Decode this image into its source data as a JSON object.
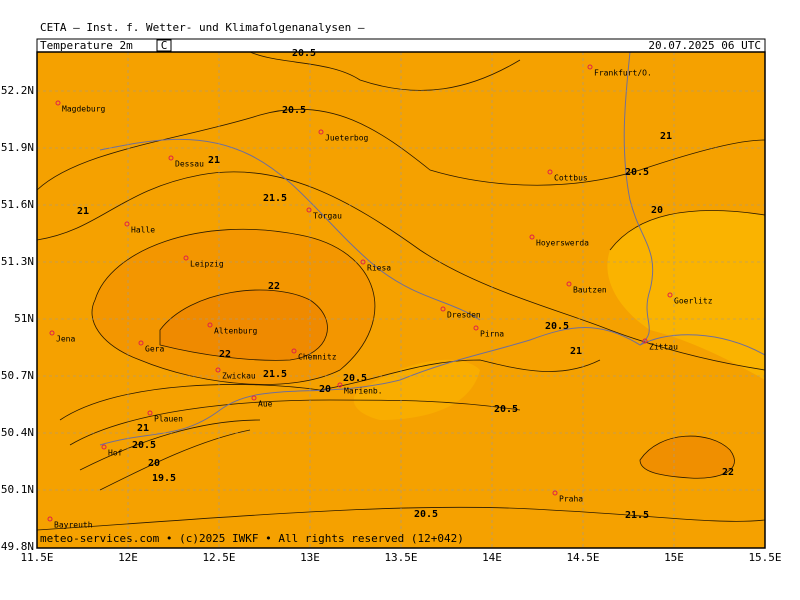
{
  "header": {
    "title": "CETA — Inst. f. Wetter- und Klimafolgenanalysen —"
  },
  "panel": {
    "field": "Temperature 2m",
    "unit": "C",
    "valid": "20.07.2025 06 UTC"
  },
  "footer": "meteo-services.com • (c)2025 IWKF • All rights reserved (12+042)",
  "xticks": [
    "11.5E",
    "12E",
    "12.5E",
    "13E",
    "13.5E",
    "14E",
    "14.5E",
    "15E",
    "15.5E"
  ],
  "yticks": [
    "52.2N",
    "51.9N",
    "51.6N",
    "51.3N",
    "51N",
    "50.7N",
    "50.4N",
    "50.1N",
    "49.8N"
  ],
  "cities": [
    "Magdeburg",
    "Jueterbog",
    "Frankfurt/O.",
    "Dessau",
    "Cottbus",
    "Torgau",
    "Halle",
    "Hoyerswerda",
    "Leipzig",
    "Riesa",
    "Bautzen",
    "Goerlitz",
    "Dresden",
    "Pirna",
    "Altenburg",
    "Jena",
    "Gera",
    "Zittau",
    "Chemnitz",
    "Zwickau",
    "Marienb.",
    "Aue",
    "Plauen",
    "Hof",
    "Praha",
    "Bayreuth"
  ],
  "contour_labels": [
    "20.5",
    "20.5",
    "21",
    "21",
    "20.5",
    "21.5",
    "20",
    "21",
    "22",
    "20.5",
    "22",
    "21",
    "21.5",
    "20.5",
    "20",
    "20.5",
    "21",
    "20.5",
    "20",
    "19.5",
    "22",
    "20.5",
    "21.5"
  ]
}
